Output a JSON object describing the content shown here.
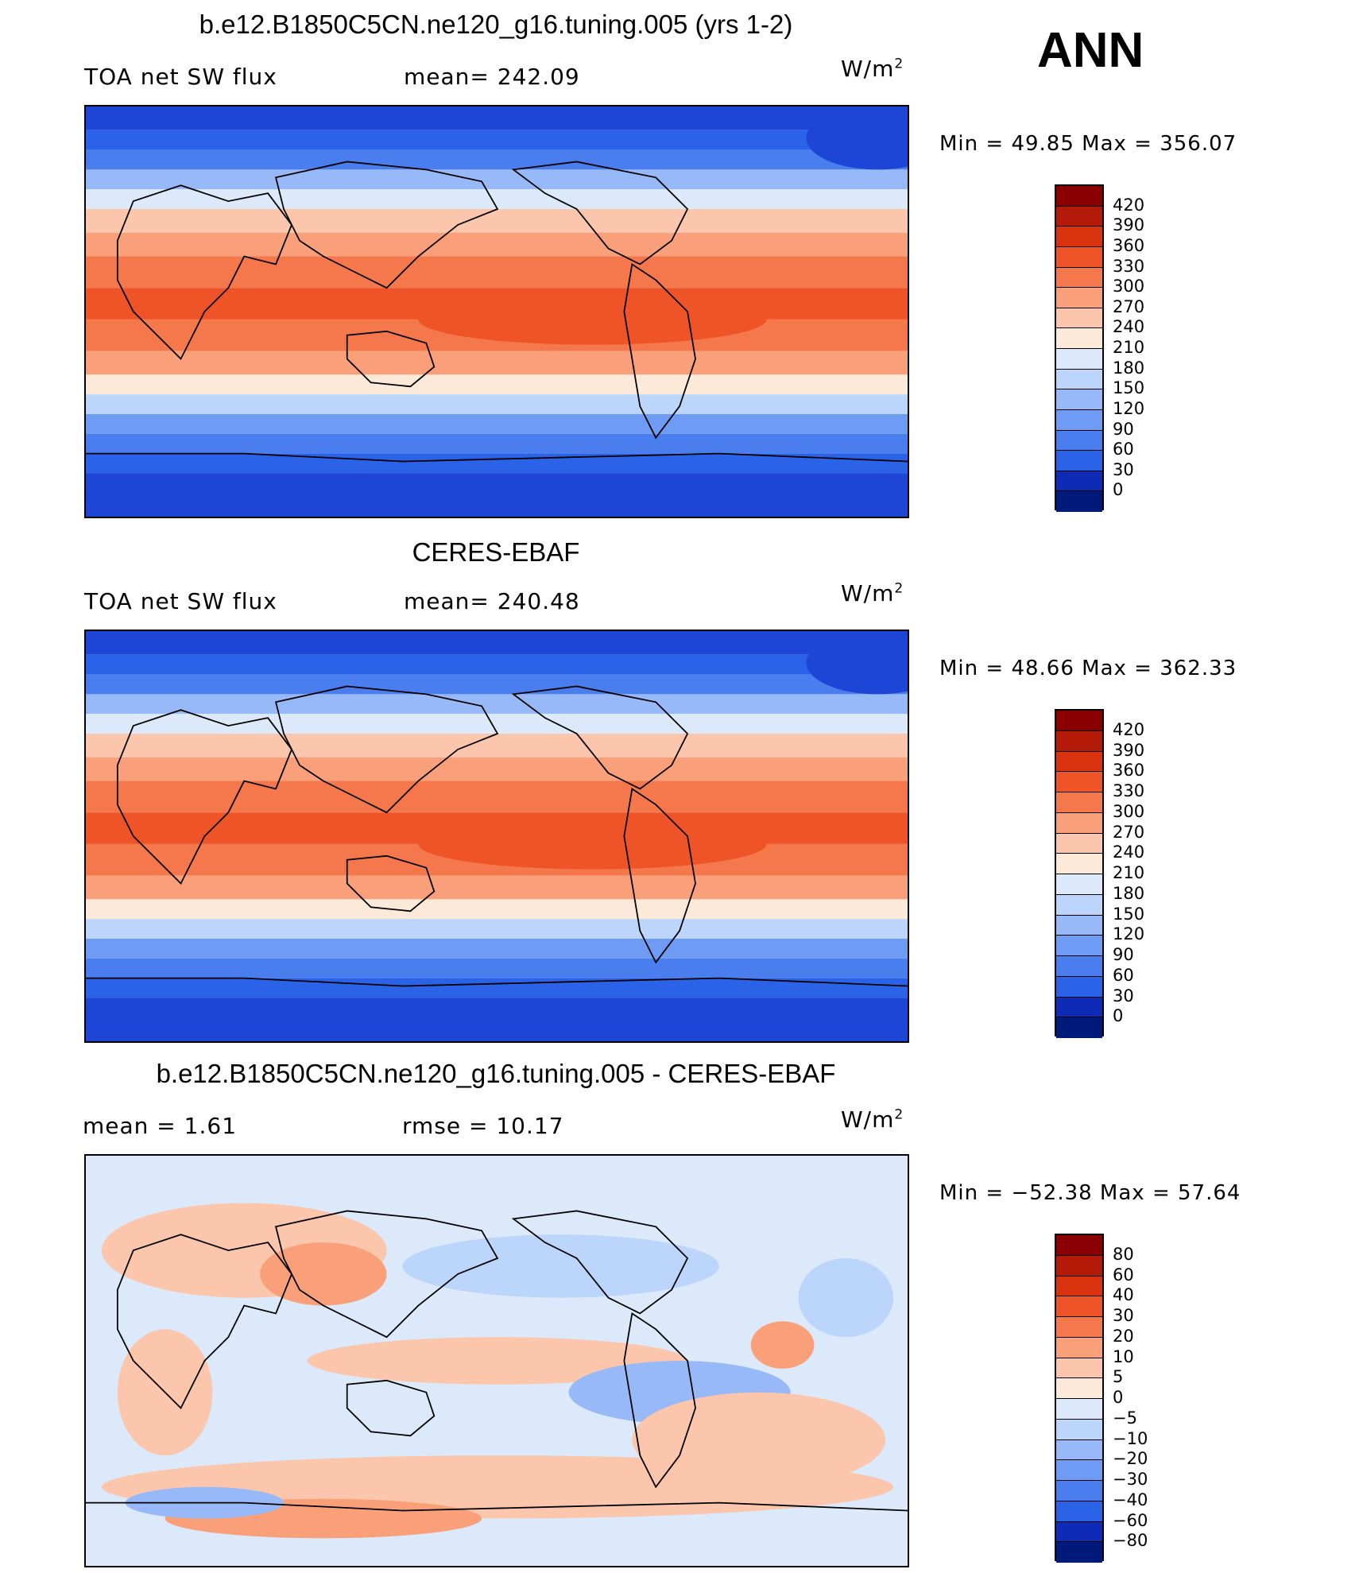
{
  "season": "ANN",
  "colors": {
    "warm": [
      "#fde9d8",
      "#fbc6ab",
      "#f9a07a",
      "#f5774c",
      "#ef5428",
      "#d8320f",
      "#b41a08",
      "#8a0000"
    ],
    "cool": [
      "#dbe9fb",
      "#bcd5fa",
      "#98b9f7",
      "#6e9bf3",
      "#4a7eee",
      "#2a62e8",
      "#1d45d6",
      "#0e2bb8",
      "#001a7a"
    ]
  },
  "panels": [
    {
      "title": "b.e12.B1850C5CN.ne120_g16.tuning.005 (yrs 1-2)",
      "left_label": "TOA net SW flux",
      "center_label": "mean= 242.09",
      "units": "W/m",
      "units_sup": "2",
      "minmax": "Min =   49.85 Max = 356.07",
      "colorbar": [
        "420",
        "390",
        "360",
        "330",
        "300",
        "270",
        "240",
        "210",
        "180",
        "150",
        "120",
        "90",
        "60",
        "30",
        "0"
      ],
      "fill_field": "absolute"
    },
    {
      "title": "CERES-EBAF",
      "left_label": "TOA net SW flux",
      "center_label": "mean= 240.48",
      "units": "W/m",
      "units_sup": "2",
      "minmax": "Min =   48.66 Max = 362.33",
      "colorbar": [
        "420",
        "390",
        "360",
        "330",
        "300",
        "270",
        "240",
        "210",
        "180",
        "150",
        "120",
        "90",
        "60",
        "30",
        "0"
      ],
      "fill_field": "absolute"
    },
    {
      "title": "b.e12.B1850C5CN.ne120_g16.tuning.005 - CERES-EBAF",
      "left_label": "mean =     1.61",
      "center_label": "rmse =    10.17",
      "units": "W/m",
      "units_sup": "2",
      "minmax": "Min = −52.38 Max =   57.64",
      "colorbar": [
        "80",
        "60",
        "40",
        "30",
        "20",
        "10",
        "5",
        "0",
        "−5",
        "−10",
        "−20",
        "−30",
        "−40",
        "−60",
        "−80"
      ],
      "fill_field": "difference"
    }
  ]
}
